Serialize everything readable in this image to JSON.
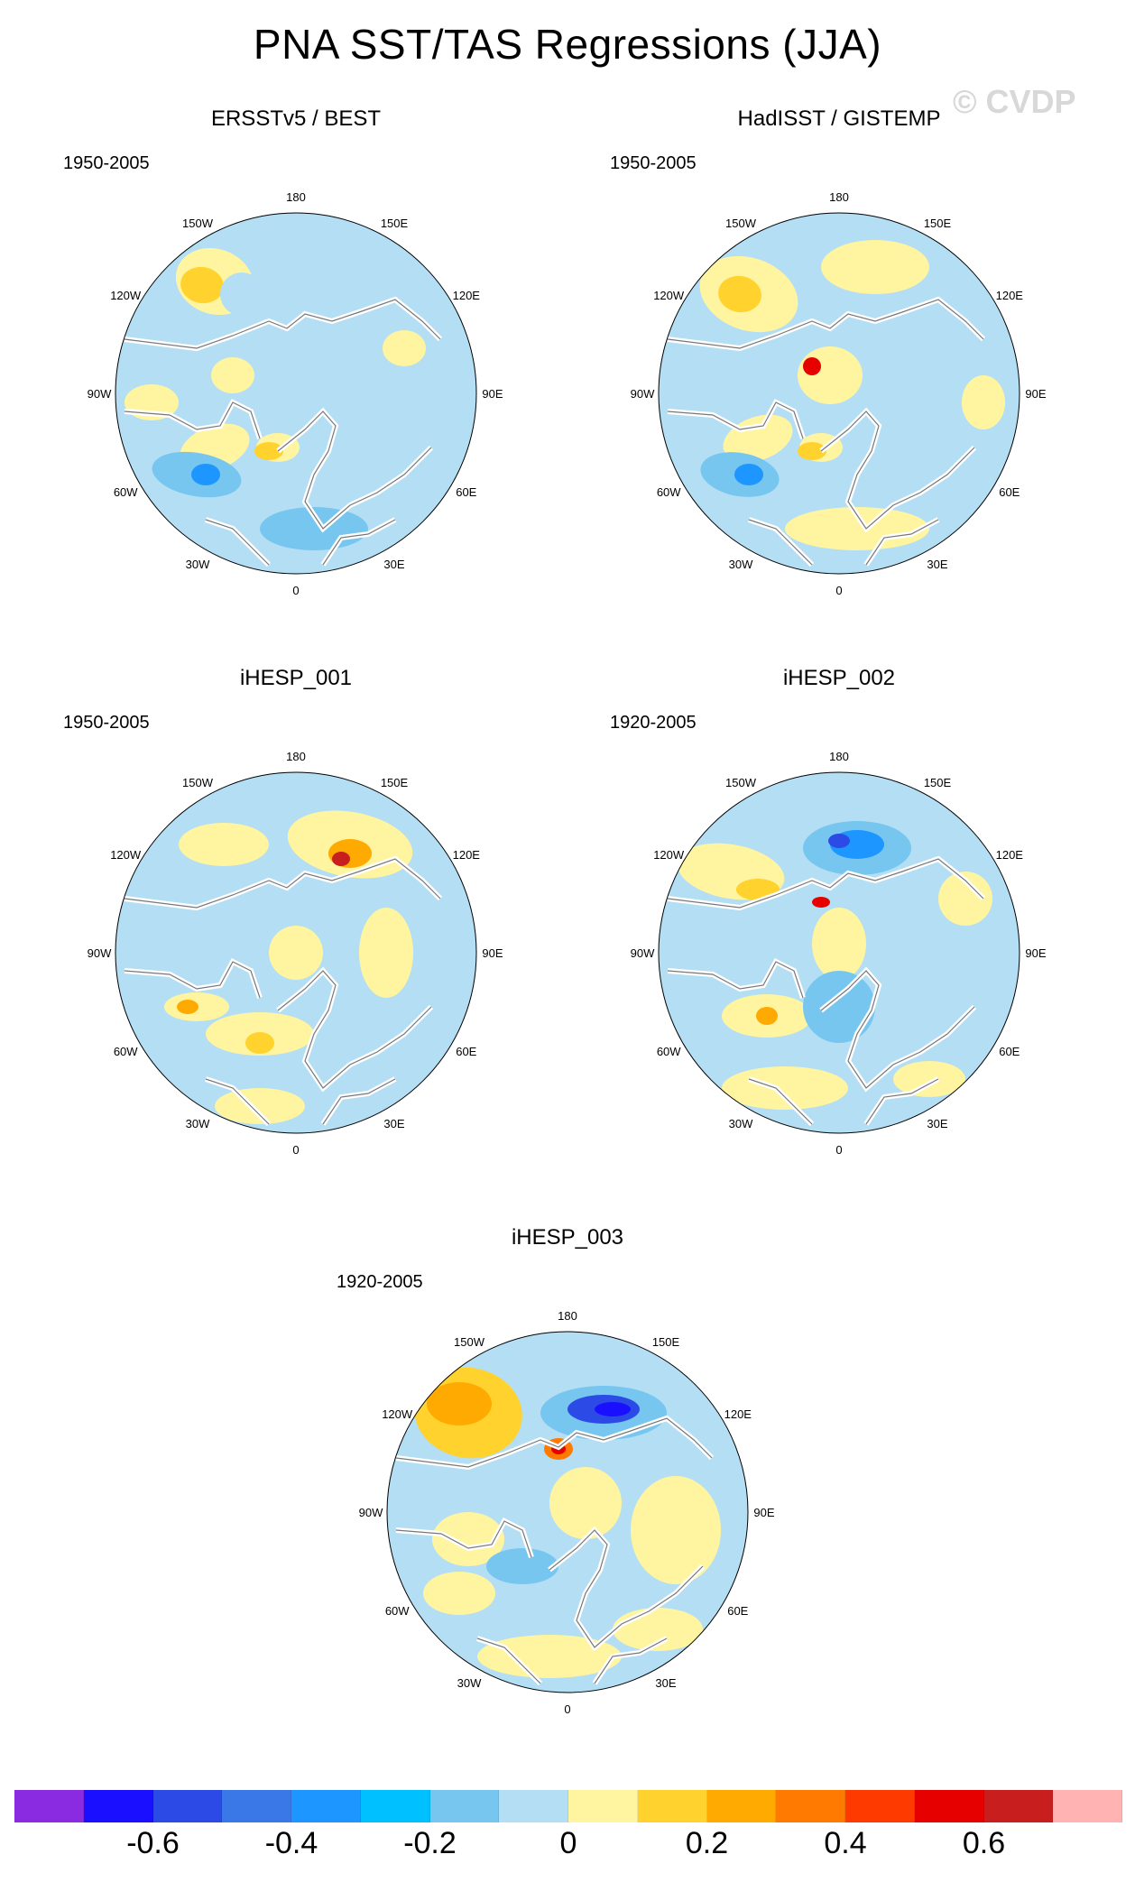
{
  "title": "PNA SST/TAS Regressions (JJA)",
  "watermark": "© CVDP",
  "lon_labels": [
    "180",
    "150E",
    "120E",
    "90E",
    "60E",
    "30E",
    "0",
    "30W",
    "60W",
    "90W",
    "120W",
    "150W"
  ],
  "panels": [
    {
      "title": "ERSSTv5 / BEST",
      "period": "1950-2005"
    },
    {
      "title": "HadISST / GISTEMP",
      "period": "1950-2005"
    },
    {
      "title": "iHESP_001",
      "period": "1950-2005"
    },
    {
      "title": "iHESP_002",
      "period": "1920-2005"
    },
    {
      "title": "iHESP_003",
      "period": "1920-2005"
    }
  ],
  "colorbar": {
    "colors": [
      "#8a2be2",
      "#1a0fff",
      "#2c4be6",
      "#3a78e8",
      "#1e96ff",
      "#00c0ff",
      "#76c6f0",
      "#b4def4",
      "#fff5a0",
      "#ffd22e",
      "#ffaa00",
      "#ff7a00",
      "#ff3a00",
      "#e60000",
      "#c81e1e",
      "#ffb3b3"
    ],
    "labels": [
      "-0.6",
      "-0.4",
      "-0.2",
      "0",
      "0.2",
      "0.4",
      "0.6"
    ],
    "label_values": [
      -0.6,
      -0.4,
      -0.2,
      0,
      0.2,
      0.4,
      0.6
    ]
  }
}
